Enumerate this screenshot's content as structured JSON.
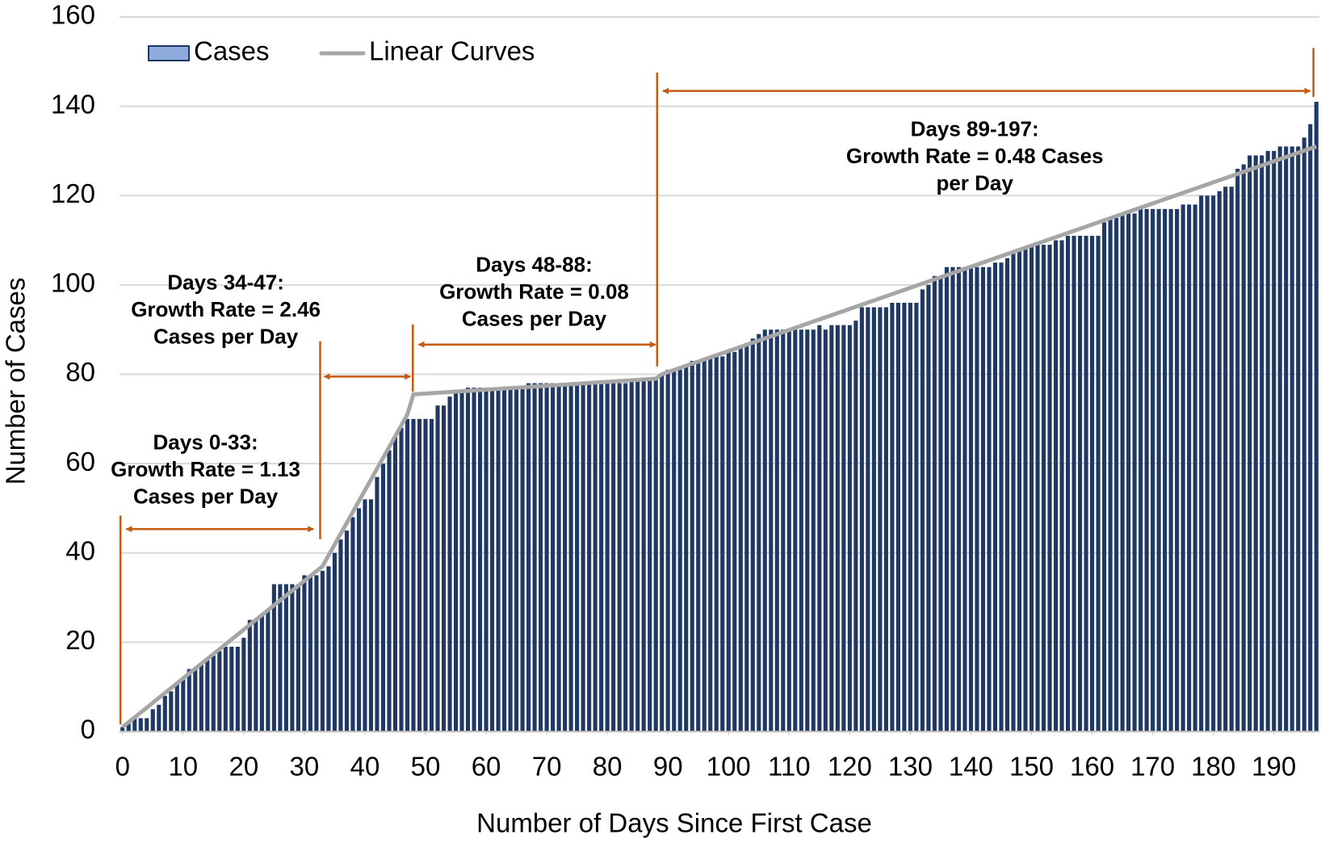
{
  "chart_data": {
    "type": "bar",
    "xlabel": "Number of Days Since First Case",
    "ylabel": "Number of Cases",
    "xlim": [
      -0.5,
      197.5
    ],
    "ylim": [
      0,
      160
    ],
    "xticks": [
      0,
      10,
      20,
      30,
      40,
      50,
      60,
      70,
      80,
      90,
      100,
      110,
      120,
      130,
      140,
      150,
      160,
      170,
      180,
      190
    ],
    "yticks": [
      0,
      20,
      40,
      60,
      80,
      100,
      120,
      140,
      160
    ],
    "grid": true,
    "legend": "top-left",
    "x": [
      0,
      1,
      2,
      3,
      4,
      5,
      6,
      7,
      8,
      9,
      10,
      11,
      12,
      13,
      14,
      15,
      16,
      17,
      18,
      19,
      20,
      21,
      22,
      23,
      24,
      25,
      26,
      27,
      28,
      29,
      30,
      31,
      32,
      33,
      34,
      35,
      36,
      37,
      38,
      39,
      40,
      41,
      42,
      43,
      44,
      45,
      46,
      47,
      48,
      49,
      50,
      51,
      52,
      53,
      54,
      55,
      56,
      57,
      58,
      59,
      60,
      61,
      62,
      63,
      64,
      65,
      66,
      67,
      68,
      69,
      70,
      71,
      72,
      73,
      74,
      75,
      76,
      77,
      78,
      79,
      80,
      81,
      82,
      83,
      84,
      85,
      86,
      87,
      88,
      89,
      90,
      91,
      92,
      93,
      94,
      95,
      96,
      97,
      98,
      99,
      100,
      101,
      102,
      103,
      104,
      105,
      106,
      107,
      108,
      109,
      110,
      111,
      112,
      113,
      114,
      115,
      116,
      117,
      118,
      119,
      120,
      121,
      122,
      123,
      124,
      125,
      126,
      127,
      128,
      129,
      130,
      131,
      132,
      133,
      134,
      135,
      136,
      137,
      138,
      139,
      140,
      141,
      142,
      143,
      144,
      145,
      146,
      147,
      148,
      149,
      150,
      151,
      152,
      153,
      154,
      155,
      156,
      157,
      158,
      159,
      160,
      161,
      162,
      163,
      164,
      165,
      166,
      167,
      168,
      169,
      170,
      171,
      172,
      173,
      174,
      175,
      176,
      177,
      178,
      179,
      180,
      181,
      182,
      183,
      184,
      185,
      186,
      187,
      188,
      189,
      190,
      191,
      192,
      193,
      194,
      195,
      196,
      197
    ],
    "series": [
      {
        "name": "Cases",
        "type": "bar",
        "color": "#1f3864",
        "legend_color": "#8faadc",
        "values": [
          1,
          2,
          3,
          3,
          3,
          5,
          6,
          8,
          9,
          11,
          12,
          14,
          14,
          15,
          16,
          17,
          18,
          19,
          19,
          19,
          21,
          25,
          25,
          26,
          27,
          33,
          33,
          33,
          33,
          33,
          35,
          35,
          35,
          36,
          37,
          40,
          43,
          45,
          48,
          50,
          52,
          52,
          57,
          60,
          63,
          66,
          68,
          70,
          70,
          70,
          70,
          70,
          73,
          73,
          75,
          76,
          76,
          77,
          77,
          77,
          77,
          77,
          77,
          77,
          77,
          77,
          77,
          78,
          78,
          78,
          78,
          78,
          78,
          78,
          78,
          78,
          78,
          78,
          78,
          78,
          78,
          78,
          78,
          78,
          79,
          79,
          79,
          79,
          79,
          80,
          81,
          81,
          81,
          82,
          83,
          83,
          83,
          84,
          84,
          84,
          85,
          85,
          86,
          87,
          88,
          89,
          90,
          90,
          90,
          90,
          90,
          90,
          90,
          90,
          90,
          91,
          90,
          91,
          91,
          91,
          91,
          92,
          95,
          95,
          95,
          95,
          95,
          96,
          96,
          96,
          96,
          96,
          99,
          100,
          102,
          102,
          104,
          104,
          104,
          104,
          104,
          104,
          104,
          104,
          105,
          105,
          106,
          107,
          108,
          108,
          109,
          109,
          109,
          109,
          110,
          110,
          111,
          111,
          111,
          111,
          111,
          111,
          114,
          115,
          115,
          116,
          116,
          116,
          117,
          117,
          117,
          117,
          117,
          117,
          117,
          118,
          118,
          118,
          120,
          120,
          120,
          121,
          122,
          122,
          126,
          127,
          129,
          129,
          129,
          130,
          130,
          131,
          131,
          131,
          131,
          133,
          136,
          141
        ]
      },
      {
        "name": "Linear Curves",
        "type": "line",
        "color": "#a6a6a6",
        "x": [
          0,
          33,
          47,
          48,
          88,
          89,
          197
        ],
        "values": [
          1,
          37,
          71,
          75.5,
          79,
          80,
          131
        ]
      }
    ],
    "annotations": [
      {
        "lines": [
          "Days 0-33:",
          "Growth Rate = 1.13",
          "Cases per Day"
        ]
      },
      {
        "lines": [
          "Days 34-47:",
          "Growth Rate = 2.46",
          "Cases per Day"
        ]
      },
      {
        "lines": [
          "Days 48-88:",
          "Growth Rate = 0.08",
          "Cases per Day"
        ]
      },
      {
        "lines": [
          "Days 89-197:",
          "Growth Rate = 0.48 Cases",
          "per Day"
        ]
      }
    ]
  }
}
